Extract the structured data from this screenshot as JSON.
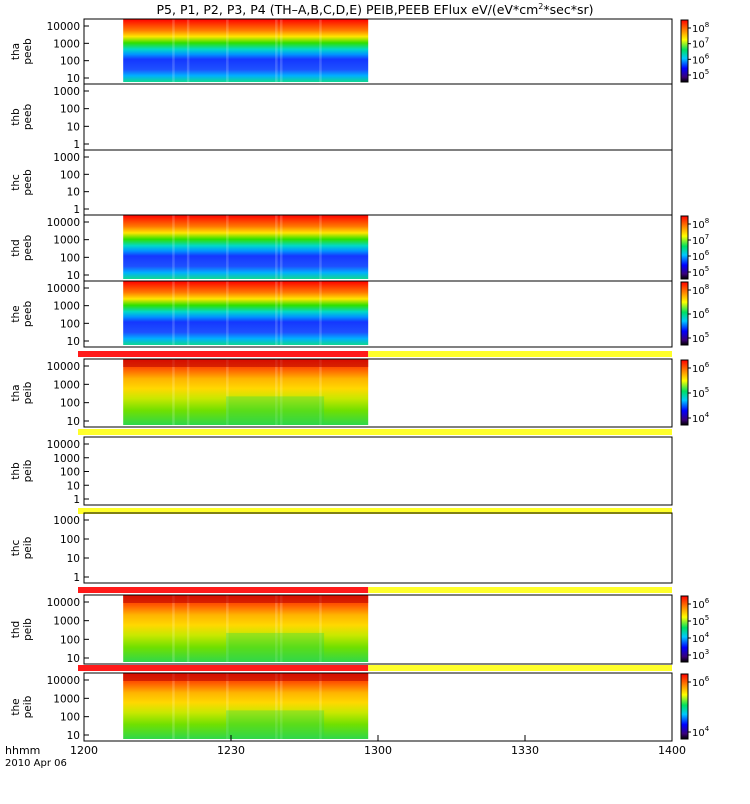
{
  "title_parts": {
    "prefix": "P5, P1, P2, P3, P4 (TH–A,B,C,D,E) PEIB,PEEB EFlux eV/(eV*cm",
    "sup": "2",
    "suffix": "*sec*sr)"
  },
  "footer": {
    "axis_label": "hhmm",
    "date": "2010 Apr 06"
  },
  "colors": {
    "bar_red": "#ff1a1a",
    "bar_yellow": "#ffff2a",
    "frame": "#000000"
  },
  "chart_data": {
    "type": "heatmap",
    "x_ticks": [
      "1200",
      "1230",
      "1300",
      "1330",
      "1400"
    ],
    "x_range": [
      "1200",
      "1400"
    ],
    "data_window": [
      "1208",
      "1258"
    ],
    "panels": [
      {
        "probe": "tha",
        "product": "peeb",
        "has_data": true,
        "spectrum": "electron",
        "bar_above": "none",
        "y_ticks": [
          "10000",
          "1000",
          "100",
          "10"
        ],
        "colorbar": {
          "labels": [
            [
              "10",
              "8"
            ],
            [
              "10",
              "7"
            ],
            [
              "10",
              "6"
            ],
            [
              "10",
              "5"
            ]
          ],
          "gradient": "rainbow"
        }
      },
      {
        "probe": "thb",
        "product": "peeb",
        "has_data": false,
        "spectrum": "none",
        "bar_above": "none",
        "y_ticks": [
          "1000",
          "100",
          "10",
          "1"
        ],
        "colorbar": null
      },
      {
        "probe": "thc",
        "product": "peeb",
        "has_data": false,
        "spectrum": "none",
        "bar_above": "none",
        "y_ticks": [
          "1000",
          "100",
          "10",
          "1"
        ],
        "colorbar": null
      },
      {
        "probe": "thd",
        "product": "peeb",
        "has_data": true,
        "spectrum": "electron",
        "bar_above": "none",
        "y_ticks": [
          "10000",
          "1000",
          "100",
          "10"
        ],
        "colorbar": {
          "labels": [
            [
              "10",
              "8"
            ],
            [
              "10",
              "7"
            ],
            [
              "10",
              "6"
            ],
            [
              "10",
              "5"
            ]
          ],
          "gradient": "rainbow"
        }
      },
      {
        "probe": "the",
        "product": "peeb",
        "has_data": true,
        "spectrum": "electron",
        "bar_above": "none",
        "y_ticks": [
          "10000",
          "1000",
          "100",
          "10"
        ],
        "colorbar": {
          "labels": [
            [
              "10",
              "8"
            ],
            [
              "10",
              "6"
            ],
            [
              "10",
              "5"
            ]
          ],
          "gradient": "rainbow"
        }
      },
      {
        "probe": "tha",
        "product": "peib",
        "has_data": true,
        "spectrum": "ion",
        "bar_above": "red_then_yellow",
        "y_ticks": [
          "10000",
          "1000",
          "100",
          "10"
        ],
        "colorbar": {
          "labels": [
            [
              "10",
              "6"
            ],
            [
              "10",
              "5"
            ],
            [
              "10",
              "4"
            ]
          ],
          "gradient": "rainbow"
        }
      },
      {
        "probe": "thb",
        "product": "peib",
        "has_data": false,
        "spectrum": "none",
        "bar_above": "yellow",
        "y_ticks": [
          "10000",
          "1000",
          "100",
          "10",
          "1"
        ],
        "colorbar": null
      },
      {
        "probe": "thc",
        "product": "peib",
        "has_data": false,
        "spectrum": "none",
        "bar_above": "yellow",
        "y_ticks": [
          "1000",
          "100",
          "10",
          "1"
        ],
        "colorbar": null
      },
      {
        "probe": "thd",
        "product": "peib",
        "has_data": true,
        "spectrum": "ion",
        "bar_above": "red_then_yellow",
        "y_ticks": [
          "10000",
          "1000",
          "100",
          "10"
        ],
        "colorbar": {
          "labels": [
            [
              "10",
              "6"
            ],
            [
              "10",
              "5"
            ],
            [
              "10",
              "4"
            ],
            [
              "10",
              "3"
            ]
          ],
          "gradient": "rainbow"
        }
      },
      {
        "probe": "the",
        "product": "peib",
        "has_data": true,
        "spectrum": "ion",
        "bar_above": "red_then_yellow",
        "y_ticks": [
          "10000",
          "1000",
          "100",
          "10"
        ],
        "colorbar": {
          "labels": [
            [
              "10",
              "6"
            ],
            [
              "10",
              "4"
            ]
          ],
          "gradient": "rainbow"
        }
      }
    ]
  }
}
